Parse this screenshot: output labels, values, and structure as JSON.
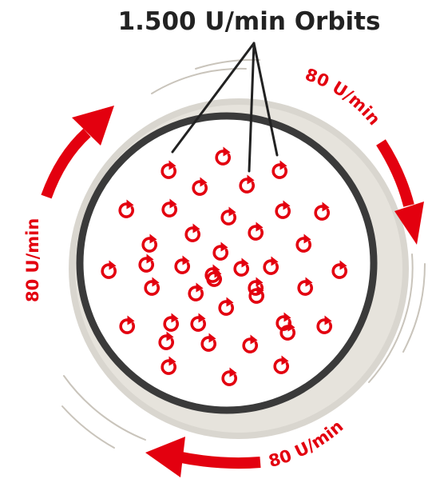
{
  "title": "1.500 U/min Orbits",
  "rotation_labels": {
    "top_right": "80 U/min",
    "left": "80 U/min",
    "bottom": "80 U/min"
  },
  "colors": {
    "accent": "#e3000f",
    "ring": "#3a3a3a",
    "halo": "#d9d6cf",
    "motion_lines": "#c9c4bb",
    "text": "#222222"
  },
  "orbit_symbol_count": 41,
  "icon": "circular-arrow-icon"
}
